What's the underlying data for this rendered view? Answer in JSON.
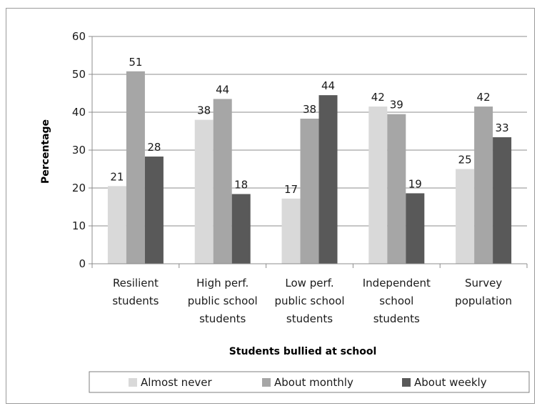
{
  "chart_data": {
    "type": "bar",
    "categories": [
      [
        "Resilient",
        "students"
      ],
      [
        "High perf.",
        "public school",
        "students"
      ],
      [
        "Low perf.",
        "public school",
        "students"
      ],
      [
        "Independent",
        "school",
        "students"
      ],
      [
        "Survey",
        "population"
      ]
    ],
    "series": [
      {
        "name": "Almost never",
        "values": [
          21,
          38,
          17,
          42,
          25
        ],
        "raw": [
          20.5,
          38,
          17.2,
          41.5,
          25
        ],
        "color": "#d9d9d9"
      },
      {
        "name": "About monthly",
        "values": [
          51,
          44,
          38,
          39,
          42
        ],
        "raw": [
          50.8,
          43.5,
          38.3,
          39.5,
          41.5
        ],
        "color": "#a6a6a6"
      },
      {
        "name": "About weekly",
        "values": [
          28,
          18,
          44,
          19,
          33
        ],
        "raw": [
          28.3,
          18.4,
          44.5,
          18.6,
          33.4
        ],
        "color": "#595959"
      }
    ],
    "xlabel": "Students bullied at school",
    "ylabel": "Percentage",
    "ylim": [
      0,
      60
    ],
    "yticks": [
      0,
      10,
      20,
      30,
      40,
      50,
      60
    ],
    "grid": true,
    "legend_position": "bottom"
  }
}
